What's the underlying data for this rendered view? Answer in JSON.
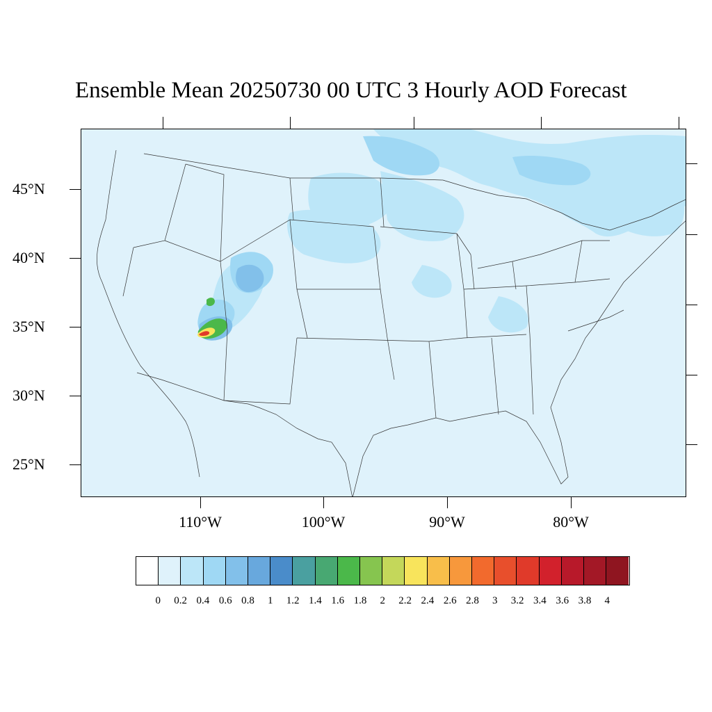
{
  "title": "Ensemble Mean 20250730 00 UTC 3 Hourly AOD Forecast",
  "lat_labels": [
    "45°N",
    "40°N",
    "35°N",
    "30°N",
    "25°N"
  ],
  "lon_labels": [
    "110°W",
    "100°W",
    "90°W",
    "80°W"
  ],
  "colorbar": {
    "colors": [
      "#ffffff",
      "#dff2fb",
      "#bce6f8",
      "#9fd8f4",
      "#82c0ea",
      "#68a8dd",
      "#4a8cca",
      "#4aa0a0",
      "#48a872",
      "#4bb84a",
      "#86c54f",
      "#c4d75a",
      "#f8e45c",
      "#f8be4a",
      "#f7983c",
      "#f26a2d",
      "#e84f2c",
      "#e03a2a",
      "#d2212c",
      "#b8192a",
      "#a31826",
      "#8f1520"
    ],
    "labels": [
      "0",
      "0.2",
      "0.4",
      "0.6",
      "0.8",
      "1",
      "1.2",
      "1.4",
      "1.6",
      "1.8",
      "2",
      "2.2",
      "2.4",
      "2.6",
      "2.8",
      "3",
      "3.2",
      "3.4",
      "3.6",
      "3.8",
      "4"
    ]
  }
}
